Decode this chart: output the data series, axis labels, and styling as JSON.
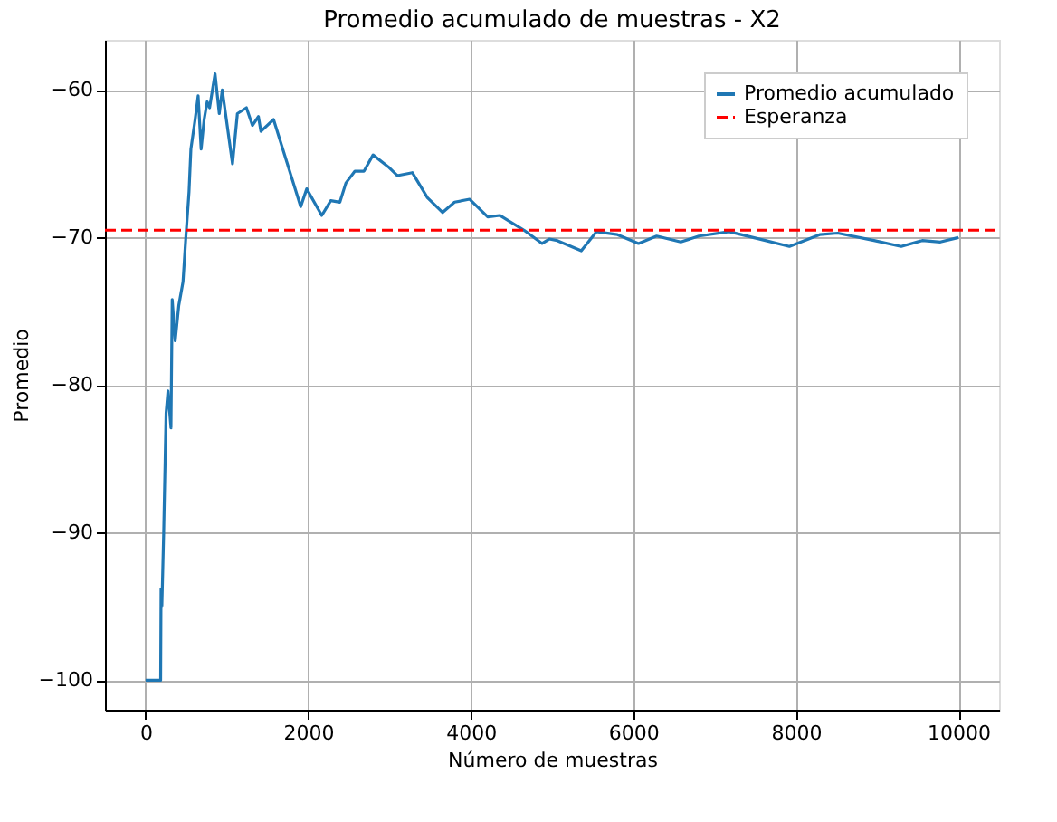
{
  "chart_data": {
    "type": "line",
    "title": "Promedio acumulado de muestras - X2",
    "xlabel": "Número de muestras",
    "ylabel": "Promedio",
    "x": [
      0,
      185,
      190,
      200,
      222,
      252,
      275,
      312,
      327,
      364,
      408,
      460,
      497,
      534,
      557,
      609,
      646,
      683,
      720,
      757,
      787,
      854,
      906,
      943,
      1069,
      1129,
      1240,
      1314,
      1388,
      1418,
      1574,
      1908,
      1982,
      2167,
      2278,
      2390,
      2464,
      2575,
      2687,
      2798,
      2984,
      3096,
      3281,
      3467,
      3653,
      3801,
      3987,
      4209,
      4357,
      4655,
      4878,
      4966,
      5063,
      5360,
      5546,
      5805,
      6064,
      6287,
      6584,
      6807,
      7178,
      7624,
      7921,
      8292,
      8515,
      8961,
      9295,
      9555,
      9778,
      10000
    ],
    "series": [
      {
        "name": "Promedio acumulado",
        "color": "#1f77b4",
        "line_style": "solid",
        "values": [
          -100,
          -100,
          -93.8,
          -95,
          -90.1,
          -81.9,
          -80.4,
          -82.9,
          -74.2,
          -77.0,
          -74.6,
          -73,
          -69.8,
          -66.9,
          -64.0,
          -62.0,
          -60.4,
          -64.0,
          -62,
          -60.8,
          -61.2,
          -58.9,
          -61.6,
          -60,
          -65.0,
          -61.6,
          -61.2,
          -62.4,
          -61.8,
          -62.8,
          -62,
          -67.9,
          -66.7,
          -68.5,
          -67.5,
          -67.6,
          -66.3,
          -65.5,
          -65.5,
          -64.4,
          -65.2,
          -65.8,
          -65.6,
          -67.3,
          -68.3,
          -67.6,
          -67.4,
          -68.6,
          -68.5,
          -69.5,
          -70.4,
          -70.1,
          -70.2,
          -70.9,
          -69.6,
          -69.8,
          -70.4,
          -69.9,
          -70.3,
          -69.9,
          -69.6,
          -70.2,
          -70.6,
          -69.8,
          -69.7,
          -70.2,
          -70.6,
          -70.2,
          -70.3,
          -70.0
        ]
      }
    ],
    "ref_lines": [
      {
        "axis": "y",
        "value": -69.5,
        "label": "Esperanza",
        "color": "#ff0000",
        "line_style": "dashed"
      }
    ],
    "xlim": [
      -500,
      10500
    ],
    "xticks": [
      0,
      2000,
      4000,
      6000,
      8000,
      10000
    ],
    "ylim": [
      -102,
      -56.6
    ],
    "yticks": [
      -100,
      -90,
      -80,
      -70,
      -60
    ],
    "grid": true,
    "legend": "top right"
  }
}
